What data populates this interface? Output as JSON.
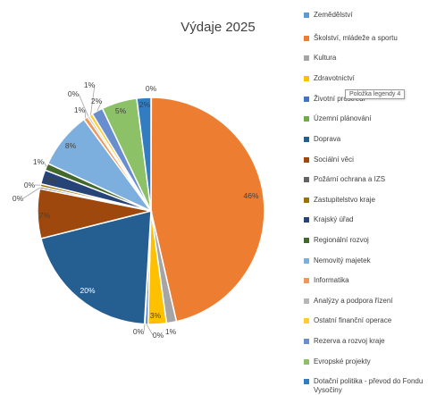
{
  "chart_data": {
    "type": "pie",
    "title": "Výdaje 2025",
    "slices": [
      {
        "label": "Zemědělství",
        "value": 0.05,
        "display": "",
        "color": "#5b9bd5"
      },
      {
        "label": "Školství, mládeže a sportu",
        "value": 46,
        "display": "46%",
        "color": "#ed7d31"
      },
      {
        "label": "Kultura",
        "value": 1.4,
        "display": "1%",
        "color": "#a5a5a5"
      },
      {
        "label": "Zdravotnictví",
        "value": 2.6,
        "display": "3%",
        "color": "#ffc000"
      },
      {
        "label": "Životní prostředí",
        "value": 0.4,
        "display": "0%",
        "color": "#4472c4"
      },
      {
        "label": "Územní plánování",
        "value": 0.1,
        "display": "0%",
        "color": "#70ad47"
      },
      {
        "label": "Doprava",
        "value": 20,
        "display": "20%",
        "color": "#255e91"
      },
      {
        "label": "Sociální věci",
        "value": 7,
        "display": "7%",
        "color": "#9e480e"
      },
      {
        "label": "Požární ochrana a IZS",
        "value": 0.3,
        "display": "0%",
        "color": "#636363"
      },
      {
        "label": "Zastupitelstvo kraje",
        "value": 0.4,
        "display": "0%",
        "color": "#997300"
      },
      {
        "label": "Krajský úřad",
        "value": 2,
        "display": "2%",
        "color": "#264478"
      },
      {
        "label": "Regionální rozvoj",
        "value": 1,
        "display": "1%",
        "color": "#43682b"
      },
      {
        "label": "Nemovitý majetek",
        "value": 8,
        "display": "8%",
        "color": "#7cafdd"
      },
      {
        "label": "Informatika",
        "value": 0.6,
        "display": "1%",
        "color": "#f1975a"
      },
      {
        "label": "Analýzy a podpora řízení",
        "value": 0.3,
        "display": "0%",
        "color": "#b7b7b7"
      },
      {
        "label": "Ostatní finanční operace",
        "value": 0.5,
        "display": "1%",
        "color": "#ffcd33"
      },
      {
        "label": "Rezerva a rozvoj kraje",
        "value": 1.6,
        "display": "2%",
        "color": "#698ed0"
      },
      {
        "label": "Evropské projekty",
        "value": 5,
        "display": "5%",
        "color": "#8cc168"
      },
      {
        "label": "Dotační politika - převod do Fondu Vysočiny",
        "value": 2,
        "display": "2%",
        "color": "#327dc2"
      }
    ],
    "extra_labels": [
      "0%"
    ],
    "legend_position": "right"
  },
  "tooltip": "Položka legendy 4"
}
